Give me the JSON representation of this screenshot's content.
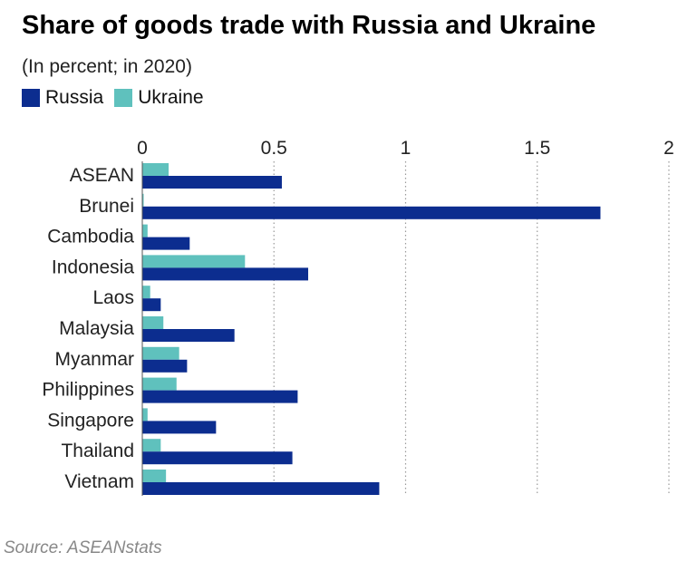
{
  "title": "Share of goods trade with Russia and Ukraine",
  "subtitle": "(In percent; in 2020)",
  "source": "Source: ASEANstats",
  "colors": {
    "russia": "#0c2d8f",
    "ukraine": "#5fc1bd"
  },
  "chart_data": {
    "type": "bar",
    "orientation": "horizontal",
    "categories": [
      "ASEAN",
      "Brunei",
      "Cambodia",
      "Indonesia",
      "Laos",
      "Malaysia",
      "Myanmar",
      "Philippines",
      "Singapore",
      "Thailand",
      "Vietnam"
    ],
    "series": [
      {
        "name": "Russia",
        "values": [
          0.53,
          1.74,
          0.18,
          0.63,
          0.07,
          0.35,
          0.17,
          0.59,
          0.28,
          0.57,
          0.9
        ]
      },
      {
        "name": "Ukraine",
        "values": [
          0.1,
          0.005,
          0.02,
          0.39,
          0.03,
          0.08,
          0.14,
          0.13,
          0.02,
          0.07,
          0.09
        ]
      }
    ],
    "ticks": [
      0,
      0.5,
      1,
      1.5,
      2
    ],
    "tick_labels": [
      "0",
      "0.5",
      "1",
      "1.5",
      "2"
    ],
    "xlim": [
      0,
      2
    ],
    "grid": "vertical dotted",
    "legend_position": "top-left"
  }
}
